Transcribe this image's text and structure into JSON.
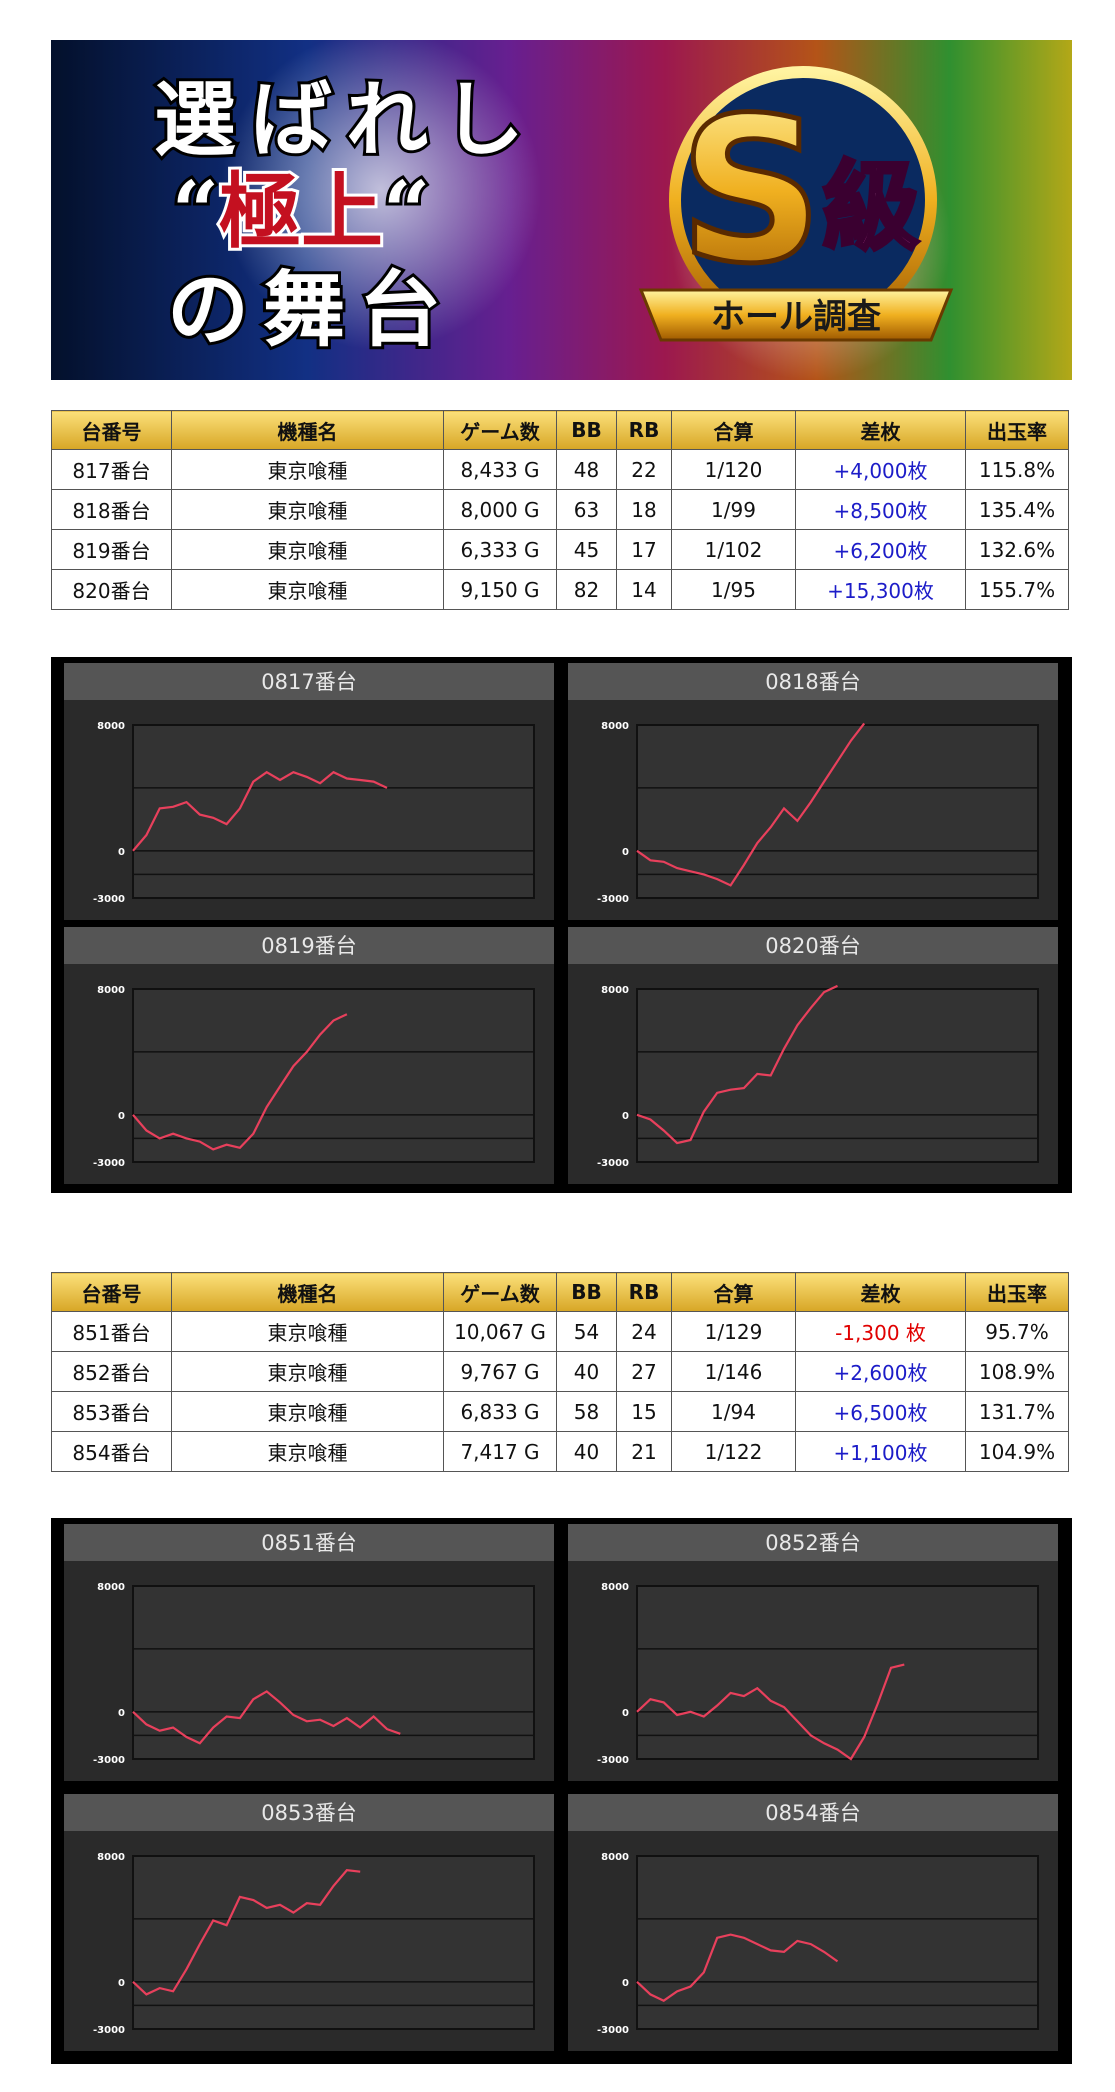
{
  "banner": {
    "line1": "選ばれし",
    "line2_parts": [
      "“",
      "極上",
      "“"
    ],
    "line3": "の舞台",
    "badge_parts": [
      "S",
      "級"
    ],
    "ribbon": "ホール調査"
  },
  "tables": [
    {
      "header": [
        "台番号",
        "機種名",
        "ゲーム数",
        "BB",
        "RB",
        "合算",
        "差枚",
        "出玉率"
      ],
      "rows": [
        [
          "817番台",
          "東京喰種",
          "8,433 G",
          "48",
          "22",
          "1/120",
          "+4,000枚",
          "115.8%"
        ],
        [
          "818番台",
          "東京喰種",
          "8,000 G",
          "63",
          "18",
          "1/99",
          "+8,500枚",
          "135.4%"
        ],
        [
          "819番台",
          "東京喰種",
          "6,333 G",
          "45",
          "17",
          "1/102",
          "+6,200枚",
          "132.6%"
        ],
        [
          "820番台",
          "東京喰種",
          "9,150 G",
          "82",
          "14",
          "1/95",
          "+15,300枚",
          "155.7%"
        ]
      ],
      "diff_colors": [
        "#1c1cc8",
        "#1c1cc8",
        "#1c1cc8",
        "#1c1cc8"
      ]
    },
    {
      "header": [
        "台番号",
        "機種名",
        "ゲーム数",
        "BB",
        "RB",
        "合算",
        "差枚",
        "出玉率"
      ],
      "rows": [
        [
          "851番台",
          "東京喰種",
          "10,067 G",
          "54",
          "24",
          "1/129",
          "-1,300 枚",
          "95.7%"
        ],
        [
          "852番台",
          "東京喰種",
          "9,767 G",
          "40",
          "27",
          "1/146",
          "+2,600枚",
          "108.9%"
        ],
        [
          "853番台",
          "東京喰種",
          "6,833 G",
          "58",
          "15",
          "1/94",
          "+6,500枚",
          "131.7%"
        ],
        [
          "854番台",
          "東京喰種",
          "7,417 G",
          "40",
          "21",
          "1/122",
          "+1,100枚",
          "104.9%"
        ]
      ],
      "diff_colors": [
        "#e00000",
        "#1c1cc8",
        "#1c1cc8",
        "#1c1cc8"
      ]
    }
  ],
  "chart_data": [
    {
      "type": "line",
      "title": "0817番台",
      "values": [
        0,
        1000,
        2700,
        2800,
        3100,
        2300,
        2100,
        1700,
        2700,
        4400,
        5000,
        4500,
        5000,
        4700,
        4300,
        5000,
        4600,
        4500,
        4400,
        4000
      ],
      "ylim": [
        -3000,
        8000
      ],
      "yticks": [
        8000,
        0,
        -3000
      ],
      "minor_gridlines": [
        4000,
        -1500
      ],
      "color": "#e8405c"
    },
    {
      "type": "line",
      "title": "0818番台",
      "values": [
        0,
        -600,
        -700,
        -1100,
        -1300,
        -1500,
        -1800,
        -2200,
        -900,
        500,
        1500,
        2700,
        1900,
        3100,
        4400,
        5700,
        7000,
        8100
      ],
      "ylim": [
        -3000,
        8000
      ],
      "yticks": [
        8000,
        0,
        -3000
      ],
      "minor_gridlines": [
        4000,
        -1500
      ],
      "color": "#e8405c"
    },
    {
      "type": "line",
      "title": "0819番台",
      "values": [
        0,
        -1000,
        -1500,
        -1200,
        -1500,
        -1700,
        -2200,
        -1900,
        -2100,
        -1200,
        500,
        1800,
        3100,
        4000,
        5100,
        6000,
        6400
      ],
      "ylim": [
        -3000,
        8000
      ],
      "yticks": [
        8000,
        0,
        -3000
      ],
      "minor_gridlines": [
        4000,
        -1500
      ],
      "color": "#e8405c"
    },
    {
      "type": "line",
      "title": "0820番台",
      "values": [
        0,
        -300,
        -1000,
        -1800,
        -1600,
        200,
        1400,
        1600,
        1700,
        2600,
        2500,
        4200,
        5700,
        6800,
        7800,
        8200
      ],
      "ylim": [
        -3000,
        8000
      ],
      "yticks": [
        8000,
        0,
        -3000
      ],
      "minor_gridlines": [
        4000,
        -1500
      ],
      "color": "#e8405c"
    },
    {
      "type": "line",
      "title": "0851番台",
      "values": [
        0,
        -800,
        -1200,
        -1000,
        -1600,
        -2000,
        -1000,
        -300,
        -400,
        800,
        1300,
        600,
        -200,
        -600,
        -500,
        -900,
        -400,
        -1000,
        -300,
        -1100,
        -1400
      ],
      "ylim": [
        -3000,
        8000
      ],
      "yticks": [
        8000,
        0,
        -3000
      ],
      "minor_gridlines": [
        4000,
        -1500
      ],
      "color": "#e8405c"
    },
    {
      "type": "line",
      "title": "0852番台",
      "values": [
        0,
        800,
        600,
        -200,
        0,
        -300,
        400,
        1200,
        1000,
        1500,
        700,
        300,
        -600,
        -1500,
        -2000,
        -2400,
        -3000,
        -1600,
        500,
        2800,
        3000
      ],
      "ylim": [
        -3000,
        8000
      ],
      "yticks": [
        8000,
        0,
        -3000
      ],
      "minor_gridlines": [
        4000,
        -1500
      ],
      "color": "#e8405c"
    },
    {
      "type": "line",
      "title": "0853番台",
      "values": [
        0,
        -800,
        -400,
        -600,
        800,
        2400,
        3900,
        3600,
        5400,
        5200,
        4700,
        4900,
        4400,
        5000,
        4900,
        6100,
        7100,
        7000
      ],
      "ylim": [
        -3000,
        8000
      ],
      "yticks": [
        8000,
        0,
        -3000
      ],
      "minor_gridlines": [
        4000,
        -1500
      ],
      "color": "#e8405c"
    },
    {
      "type": "line",
      "title": "0854番台",
      "values": [
        0,
        -800,
        -1200,
        -600,
        -300,
        600,
        2800,
        3000,
        2800,
        2400,
        2000,
        1900,
        2600,
        2400,
        1900,
        1300
      ],
      "ylim": [
        -3000,
        8000
      ],
      "yticks": [
        8000,
        0,
        -3000
      ],
      "minor_gridlines": [
        4000,
        -1500
      ],
      "color": "#e8405c"
    }
  ]
}
